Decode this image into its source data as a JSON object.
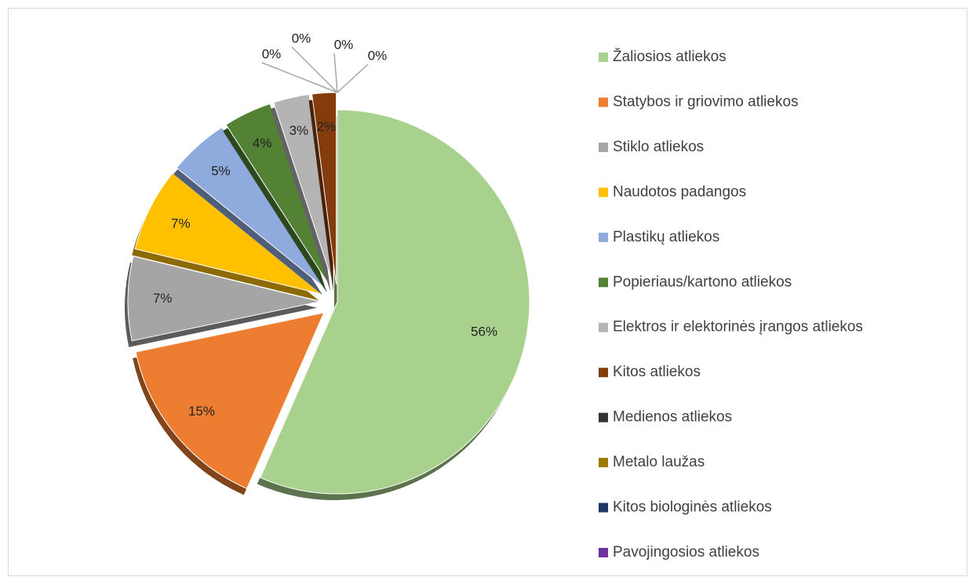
{
  "chart_data": {
    "type": "pie",
    "categories": [
      "Žaliosios atliekos",
      "Statybos ir griovimo atliekos",
      "Stiklo atliekos",
      "Naudotos padangos",
      "Plastikų atliekos",
      "Popieriaus/kartono atliekos",
      "Elektros ir elektorinės įrangos atliekos",
      "Kitos atliekos",
      "Medienos atliekos",
      "Metalo laužas",
      "Kitos biologinės atliekos",
      "Pavojingosios atliekos"
    ],
    "values": [
      56,
      15,
      7,
      7,
      5,
      4,
      3,
      2,
      0,
      0,
      0,
      0
    ],
    "value_labels": [
      "56%",
      "15%",
      "7%",
      "7%",
      "5%",
      "4%",
      "3%",
      "2%",
      "0%",
      "0%",
      "0%",
      "0%"
    ],
    "colors": [
      "#a9d18e",
      "#ed7d31",
      "#a5a5a5",
      "#ffc000",
      "#8faadc",
      "#548235",
      "#b4b4b4",
      "#843c0c",
      "#333333",
      "#9c7b00",
      "#203864",
      "#7030a0"
    ],
    "legend": "right"
  }
}
